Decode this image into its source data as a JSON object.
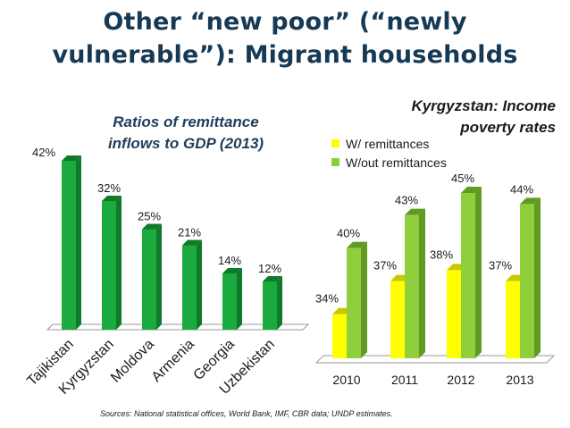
{
  "title": {
    "line1": "Other “new poor” (“newly",
    "line2": "vulnerable”): Migrant households"
  },
  "source": "Sources: National statistical offices, World Bank, IMF, CBR data; UNDP estimates.",
  "colors": {
    "title": "#163a55",
    "chart_title": "#1f3d5c",
    "green_front": "#1aaa3e",
    "green_side": "#0e7a2a",
    "green_top": "#0c6d24",
    "yellow_front": "#ffff00",
    "yellow_side": "#c8c800",
    "lightgreen_front": "#8fcf3c",
    "lightgreen_side": "#5f9a22"
  },
  "chart_data": [
    {
      "type": "bar",
      "title": "Ratios of remittance inflows to GDP (2013)",
      "title_lines": [
        "Ratios of remittance",
        "inflows to GDP (2013)"
      ],
      "categories": [
        "Tajikistan",
        "Kyrgyzstan",
        "Moldova",
        "Armenia",
        "Georgia",
        "Uzbekistan"
      ],
      "values": [
        42,
        32,
        25,
        21,
        14,
        12
      ],
      "data_labels": [
        "42%",
        "32%",
        "25%",
        "21%",
        "14%",
        "12%"
      ],
      "ylim": [
        0,
        42
      ],
      "xlabel": "",
      "ylabel": "",
      "grid": false,
      "legend": "none"
    },
    {
      "type": "bar",
      "title": "Kyrgyzstan: Income poverty rates",
      "title_lines": [
        "Kyrgyzstan: Income",
        "poverty rates"
      ],
      "categories": [
        "2010",
        "2011",
        "2012",
        "2013"
      ],
      "series": [
        {
          "name": "W/ remittances",
          "values": [
            34,
            37,
            38,
            37
          ],
          "labels": [
            "34%",
            "37%",
            "38%",
            "37%"
          ]
        },
        {
          "name": "W/out remittances",
          "values": [
            40,
            43,
            45,
            44
          ],
          "labels": [
            "40%",
            "43%",
            "45%",
            "44%"
          ]
        }
      ],
      "ylim": [
        30,
        45
      ],
      "xlabel": "",
      "ylabel": "",
      "grid": false,
      "legend": "top-left"
    }
  ]
}
